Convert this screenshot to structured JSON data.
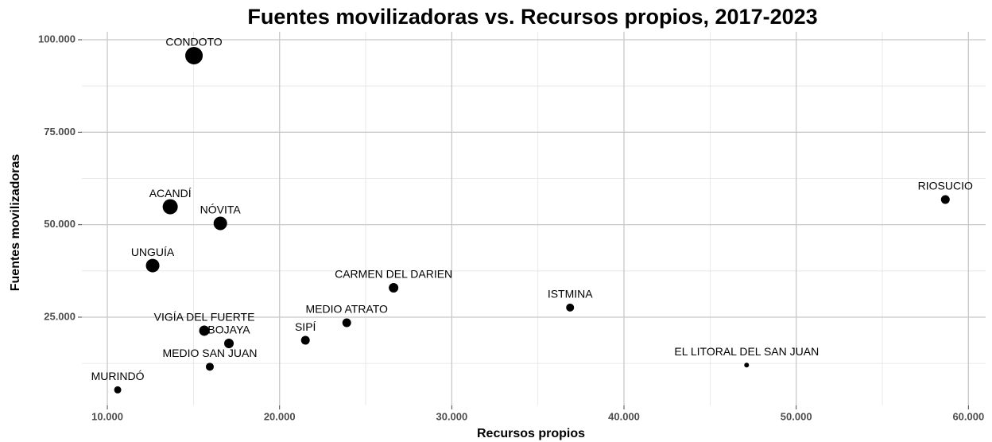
{
  "chart_data": {
    "type": "scatter",
    "title": "Fuentes movilizadoras vs. Recursos propios, 2017-2023",
    "x_label": "Recursos propios",
    "y_label": "Fuentes movilizadoras",
    "labels": [
      "CONDOTO",
      "ACANDÍ",
      "NÓVITA",
      "UNGUÍA",
      "CARMEN DEL DARIEN",
      "ISTMINA",
      "RIOSUCIO",
      "MEDIO ATRATO",
      "SIPÍ",
      "VIGÍA DEL FUERTE",
      "BOJAYA",
      "MEDIO SAN JUAN",
      "MURINDÓ",
      "EL LITORAL DEL SAN JUAN"
    ],
    "x": [
      15030,
      13650,
      16560,
      12630,
      26620,
      36870,
      58660,
      23900,
      21500,
      15630,
      17060,
      15950,
      10600,
      47120
    ],
    "values": [
      95700,
      54850,
      50350,
      38950,
      32950,
      27600,
      56800,
      23500,
      18750,
      21350,
      17900,
      11600,
      5350,
      12050
    ],
    "sizes": [
      11,
      9.5,
      8.5,
      8.5,
      6,
      5,
      5.5,
      5.5,
      5.5,
      6.5,
      6,
      5,
      4.5,
      3
    ],
    "color": "#000000",
    "xlim": [
      8520,
      61000
    ],
    "ylim": [
      1140,
      102150
    ],
    "xticks": [
      {
        "value": 10000,
        "label": "10.000"
      },
      {
        "value": 20000,
        "label": "20.000"
      },
      {
        "value": 30000,
        "label": "30.000"
      },
      {
        "value": 40000,
        "label": "40.000"
      },
      {
        "value": 50000,
        "label": "50.000"
      },
      {
        "value": 60000,
        "label": "60.000"
      }
    ],
    "yticks": [
      {
        "value": 25000,
        "label": "25.000"
      },
      {
        "value": 50000,
        "label": "50.000"
      },
      {
        "value": 75000,
        "label": "75.000"
      },
      {
        "value": 100000,
        "label": "100.000"
      }
    ],
    "minor_xticks": [
      15000,
      25000,
      35000,
      45000,
      55000
    ],
    "minor_yticks": [
      12500,
      37500,
      62500,
      87500
    ],
    "grid": true
  }
}
